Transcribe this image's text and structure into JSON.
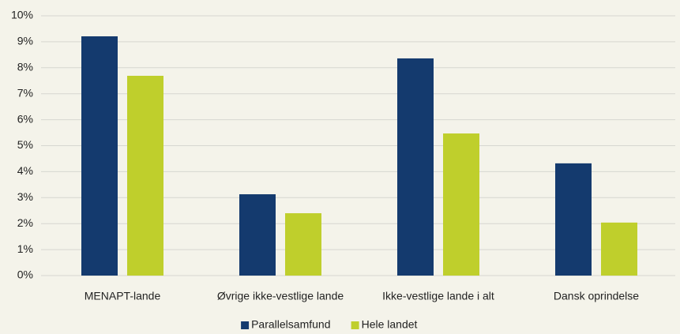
{
  "chart_data": {
    "type": "bar",
    "categories": [
      "MENAPT-lande",
      "Øvrige ikke-vestlige lande",
      "Ikke-vestlige lande i alt",
      "Dansk oprindelse"
    ],
    "series": [
      {
        "name": "Parallelsamfund",
        "color": "#143a6e",
        "values": [
          9.21,
          3.13,
          8.36,
          4.32
        ]
      },
      {
        "name": "Hele landet",
        "color": "#bfcf2c",
        "values": [
          7.69,
          2.4,
          5.47,
          2.04
        ]
      }
    ],
    "ylim": [
      0,
      10
    ],
    "yticks": [
      {
        "value": 0,
        "label": "0%"
      },
      {
        "value": 1,
        "label": "1%"
      },
      {
        "value": 2,
        "label": "2%"
      },
      {
        "value": 3,
        "label": "3%"
      },
      {
        "value": 4,
        "label": "4%"
      },
      {
        "value": 5,
        "label": "5%"
      },
      {
        "value": 6,
        "label": "6%"
      },
      {
        "value": 7,
        "label": "7%"
      },
      {
        "value": 8,
        "label": "8%"
      },
      {
        "value": 9,
        "label": "9%"
      },
      {
        "value": 10,
        "label": "10%"
      }
    ],
    "grid": true,
    "legend": "bottom"
  }
}
